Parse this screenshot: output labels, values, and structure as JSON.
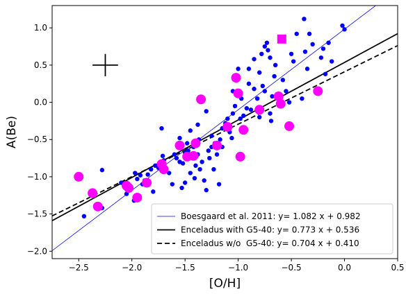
{
  "chart_data": {
    "type": "scatter",
    "xlabel": "[O/H]",
    "ylabel": "A(Be)",
    "xlim": [
      -2.75,
      0.5
    ],
    "ylim": [
      -2.1,
      1.3
    ],
    "xticks": [
      -2.5,
      -2.0,
      -1.5,
      -1.0,
      -0.5,
      0.0,
      0.5
    ],
    "xtick_labels": [
      "−2.5",
      "−2.0",
      "−1.5",
      "−1.0",
      "−0.5",
      "0.0",
      "0.5"
    ],
    "yticks": [
      -2.0,
      -1.5,
      -1.0,
      -0.5,
      0.0,
      0.5,
      1.0
    ],
    "ytick_labels": [
      "−2.0",
      "−1.5",
      "−1.0",
      "−0.5",
      "0.0",
      "0.5",
      "1.0"
    ],
    "grid": false,
    "legend_position": "bottom-right",
    "error_cross": {
      "x": -2.25,
      "y": 0.5,
      "xerr": 0.12,
      "yerr": 0.15,
      "color": "#000000"
    },
    "series": [
      {
        "kind": "points",
        "color": "#0000ff",
        "points": [
          [
            -2.45,
            -1.53
          ],
          [
            -2.32,
            -1.38
          ],
          [
            -2.28,
            -1.42
          ],
          [
            -2.28,
            -0.91
          ],
          [
            -2.1,
            -1.08
          ],
          [
            -2.05,
            -1.23
          ],
          [
            -2.02,
            -1.15
          ],
          [
            -1.98,
            -1.32
          ],
          [
            -1.97,
            -0.95
          ],
          [
            -1.95,
            -1.03
          ],
          [
            -1.92,
            -0.98
          ],
          [
            -1.9,
            -1.1
          ],
          [
            -1.88,
            -1.05
          ],
          [
            -1.85,
            -0.97
          ],
          [
            -1.82,
            -0.9
          ],
          [
            -1.8,
            -1.2
          ],
          [
            -1.78,
            -0.85
          ],
          [
            -1.75,
            -0.88
          ],
          [
            -1.72,
            -0.35
          ],
          [
            -1.71,
            -0.72
          ],
          [
            -1.7,
            -0.78
          ],
          [
            -1.68,
            -0.92
          ],
          [
            -1.65,
            -0.95
          ],
          [
            -1.62,
            -1.1
          ],
          [
            -1.6,
            -0.7
          ],
          [
            -1.58,
            -0.75
          ],
          [
            -1.55,
            -0.48
          ],
          [
            -1.55,
            -0.8
          ],
          [
            -1.53,
            -1.15
          ],
          [
            -1.52,
            -0.82
          ],
          [
            -1.5,
            -0.68
          ],
          [
            -1.5,
            -1.08
          ],
          [
            -1.48,
            -0.55
          ],
          [
            -1.47,
            -0.65
          ],
          [
            -1.45,
            -0.95
          ],
          [
            -1.45,
            -0.38
          ],
          [
            -1.43,
            -0.72
          ],
          [
            -1.42,
            -0.6
          ],
          [
            -1.41,
            -1.02
          ],
          [
            -1.4,
            -0.85
          ],
          [
            -1.38,
            -0.7
          ],
          [
            -1.38,
            -0.3
          ],
          [
            -1.37,
            -0.5
          ],
          [
            -1.36,
            -0.9
          ],
          [
            -1.34,
            -0.8
          ],
          [
            -1.32,
            -1.05
          ],
          [
            -1.3,
            -1.18
          ],
          [
            -1.3,
            -0.12
          ],
          [
            -1.28,
            -0.65
          ],
          [
            -1.27,
            -0.75
          ],
          [
            -1.25,
            -0.6
          ],
          [
            -1.25,
            -0.45
          ],
          [
            -1.23,
            -0.9
          ],
          [
            -1.22,
            -0.55
          ],
          [
            -1.2,
            -0.7
          ],
          [
            -1.18,
            -1.1
          ],
          [
            -1.17,
            -0.5
          ],
          [
            -1.15,
            -0.35
          ],
          [
            -1.15,
            -0.6
          ],
          [
            -1.12,
            -0.28
          ],
          [
            -1.1,
            -0.22
          ],
          [
            -1.08,
            -0.4
          ],
          [
            -1.06,
            -0.48
          ],
          [
            -1.05,
            -0.15
          ],
          [
            -1.05,
            0.15
          ],
          [
            -1.03,
            -0.05
          ],
          [
            -1.0,
            0.45
          ],
          [
            -0.98,
            -0.22
          ],
          [
            -0.97,
            0.05
          ],
          [
            -0.95,
            -0.18
          ],
          [
            -0.92,
            -0.08
          ],
          [
            -0.9,
            0.25
          ],
          [
            -0.9,
            0.45
          ],
          [
            -0.88,
            -0.1
          ],
          [
            -0.85,
            0.18
          ],
          [
            -0.85,
            0.58
          ],
          [
            -0.82,
            0.05
          ],
          [
            -0.8,
            -0.2
          ],
          [
            -0.8,
            0.4
          ],
          [
            -0.78,
            0.65
          ],
          [
            -0.77,
            0.22
          ],
          [
            -0.75,
            0.15
          ],
          [
            -0.75,
            0.75
          ],
          [
            -0.73,
            0.8
          ],
          [
            -0.72,
            0.7
          ],
          [
            -0.7,
            -0.15
          ],
          [
            -0.7,
            0.6
          ],
          [
            -0.69,
            -0.25
          ],
          [
            -0.68,
            0.08
          ],
          [
            -0.66,
            0.35
          ],
          [
            -0.65,
            0.5
          ],
          [
            -0.62,
            -0.02
          ],
          [
            -0.6,
            0.85
          ],
          [
            -0.58,
            0.3
          ],
          [
            -0.55,
            0.15
          ],
          [
            -0.52,
            0.0
          ],
          [
            -0.5,
            0.65
          ],
          [
            -0.48,
            0.55
          ],
          [
            -0.45,
            0.92
          ],
          [
            -0.4,
            0.05
          ],
          [
            -0.38,
            1.12
          ],
          [
            -0.37,
            0.68
          ],
          [
            -0.35,
            0.45
          ],
          [
            -0.33,
            0.92
          ],
          [
            -0.3,
            0.78
          ],
          [
            -0.22,
            0.6
          ],
          [
            -0.2,
            0.72
          ],
          [
            -0.18,
            0.38
          ],
          [
            -0.15,
            0.8
          ],
          [
            -0.12,
            0.55
          ],
          [
            -0.02,
            1.03
          ],
          [
            0.0,
            0.98
          ]
        ]
      },
      {
        "kind": "circles",
        "color": "#ff00ff",
        "points": [
          [
            -2.5,
            -1.0
          ],
          [
            -2.37,
            -1.22
          ],
          [
            -2.32,
            -1.4
          ],
          [
            -2.05,
            -1.12
          ],
          [
            -2.03,
            -1.15
          ],
          [
            -1.95,
            -1.28
          ],
          [
            -1.86,
            -1.08
          ],
          [
            -1.72,
            -0.83
          ],
          [
            -1.7,
            -0.9
          ],
          [
            -1.55,
            -0.58
          ],
          [
            -1.48,
            -0.73
          ],
          [
            -1.42,
            -0.72
          ],
          [
            -1.4,
            -0.55
          ],
          [
            -1.35,
            0.04
          ],
          [
            -1.2,
            -0.58
          ],
          [
            -1.1,
            -0.33
          ],
          [
            -1.02,
            0.33
          ],
          [
            -1.0,
            0.12
          ],
          [
            -0.98,
            -0.73
          ],
          [
            -0.95,
            -0.37
          ],
          [
            -0.8,
            -0.1
          ],
          [
            -0.62,
            0.08
          ],
          [
            -0.6,
            -0.02
          ],
          [
            -0.52,
            -0.32
          ],
          [
            -0.25,
            0.15
          ]
        ]
      },
      {
        "kind": "square",
        "color": "#ff00ff",
        "points": [
          [
            -0.59,
            0.85
          ]
        ]
      }
    ],
    "fit_lines": [
      {
        "name": "Boesgaard et al. 2011: y= 1.082 x + 0.982",
        "slope": 1.082,
        "intercept": 0.982,
        "color": "#0000ff",
        "style": "solid",
        "width": 0.8
      },
      {
        "name": "Enceladus with G5-40: y= 0.773 x + 0.536",
        "slope": 0.773,
        "intercept": 0.536,
        "color": "#000000",
        "style": "solid",
        "width": 1.8
      },
      {
        "name": "Enceladus w/o  G5-40: y= 0.704 x + 0.410",
        "slope": 0.704,
        "intercept": 0.41,
        "color": "#000000",
        "style": "dashed",
        "width": 1.8
      }
    ]
  }
}
